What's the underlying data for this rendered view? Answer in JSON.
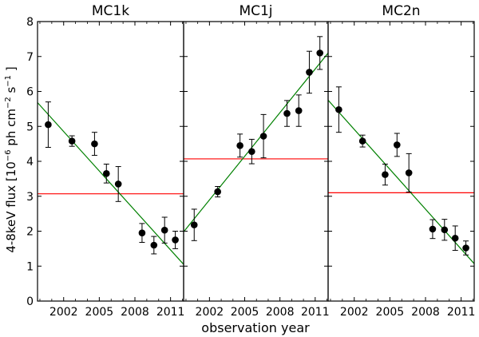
{
  "figure": {
    "xlabel": "observation year",
    "ylabel_prefix": "4-8keV flux [10",
    "ylabel_exp1": "−6",
    "ylabel_mid": " ph cm",
    "ylabel_exp2": "−2",
    "ylabel_mid2": " s",
    "ylabel_exp3": "−1",
    "ylabel_suffix": " ]"
  },
  "colors": {
    "data": "#000000",
    "fit": "#008000",
    "mean": "#ff0000"
  },
  "chart_data": [
    {
      "type": "scatter",
      "title": "MC1k",
      "xlim": [
        1999.8,
        2012.1
      ],
      "ylim": [
        0,
        8
      ],
      "xticks": [
        2002,
        2005,
        2008,
        2011
      ],
      "yticks": [
        0,
        1,
        2,
        3,
        4,
        5,
        6,
        7,
        8
      ],
      "points": [
        {
          "x": 2000.7,
          "y": 5.05,
          "err": 0.65
        },
        {
          "x": 2002.7,
          "y": 4.58,
          "err": 0.15
        },
        {
          "x": 2004.6,
          "y": 4.5,
          "err": 0.33
        },
        {
          "x": 2005.6,
          "y": 3.65,
          "err": 0.27
        },
        {
          "x": 2006.6,
          "y": 3.35,
          "err": 0.5
        },
        {
          "x": 2008.6,
          "y": 1.95,
          "err": 0.27
        },
        {
          "x": 2009.6,
          "y": 1.6,
          "err": 0.25
        },
        {
          "x": 2010.5,
          "y": 2.03,
          "err": 0.37
        },
        {
          "x": 2011.4,
          "y": 1.75,
          "err": 0.25
        }
      ],
      "fit_line": {
        "x": [
          1999.8,
          2012.1
        ],
        "y": [
          5.68,
          1.05
        ]
      },
      "mean_line": 3.07
    },
    {
      "type": "scatter",
      "title": "MC1j",
      "xlim": [
        1999.8,
        2012.1
      ],
      "ylim": [
        0,
        8
      ],
      "xticks": [
        2002,
        2005,
        2008,
        2011
      ],
      "yticks": [
        0,
        1,
        2,
        3,
        4,
        5,
        6,
        7,
        8
      ],
      "points": [
        {
          "x": 2000.7,
          "y": 2.18,
          "err": 0.45
        },
        {
          "x": 2002.7,
          "y": 3.13,
          "err": 0.15
        },
        {
          "x": 2004.6,
          "y": 4.45,
          "err": 0.33
        },
        {
          "x": 2005.6,
          "y": 4.28,
          "err": 0.35
        },
        {
          "x": 2006.6,
          "y": 4.72,
          "err": 0.62
        },
        {
          "x": 2008.6,
          "y": 5.37,
          "err": 0.37
        },
        {
          "x": 2009.6,
          "y": 5.45,
          "err": 0.45
        },
        {
          "x": 2010.5,
          "y": 6.55,
          "err": 0.6
        },
        {
          "x": 2011.4,
          "y": 7.1,
          "err": 0.47
        }
      ],
      "fit_line": {
        "x": [
          1999.8,
          2012.1
        ],
        "y": [
          1.98,
          7.1
        ]
      },
      "mean_line": 4.07
    },
    {
      "type": "scatter",
      "title": "MC2n",
      "xlim": [
        1999.8,
        2012.1
      ],
      "ylim": [
        0,
        8
      ],
      "xticks": [
        2002,
        2005,
        2008,
        2011
      ],
      "yticks": [
        0,
        1,
        2,
        3,
        4,
        5,
        6,
        7,
        8
      ],
      "points": [
        {
          "x": 2000.7,
          "y": 5.48,
          "err": 0.65
        },
        {
          "x": 2002.7,
          "y": 4.58,
          "err": 0.17
        },
        {
          "x": 2004.6,
          "y": 3.62,
          "err": 0.3
        },
        {
          "x": 2005.6,
          "y": 4.47,
          "err": 0.33
        },
        {
          "x": 2006.6,
          "y": 3.67,
          "err": 0.55
        },
        {
          "x": 2008.6,
          "y": 2.06,
          "err": 0.27
        },
        {
          "x": 2009.6,
          "y": 2.04,
          "err": 0.3
        },
        {
          "x": 2010.5,
          "y": 1.8,
          "err": 0.35
        },
        {
          "x": 2011.4,
          "y": 1.52,
          "err": 0.2
        }
      ],
      "fit_line": {
        "x": [
          1999.8,
          2012.1
        ],
        "y": [
          5.75,
          1.07
        ]
      },
      "mean_line": 3.1
    }
  ]
}
